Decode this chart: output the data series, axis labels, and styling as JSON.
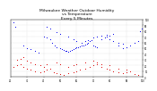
{
  "title": "Milwaukee Weather Outdoor Humidity\nvs Temperature\nEvery 5 Minutes",
  "title_fontsize": 3.2,
  "background_color": "#ffffff",
  "grid_color": "#bbbbbb",
  "blue_color": "#0000ee",
  "red_color": "#dd0000",
  "point_size": 0.5,
  "xlim": [
    20,
    100
  ],
  "ylim": [
    0,
    100
  ],
  "x_tick_interval": 10,
  "y_tick_interval": 10,
  "blue_points": [
    [
      22,
      95
    ],
    [
      23,
      88
    ],
    [
      28,
      55
    ],
    [
      30,
      50
    ],
    [
      32,
      48
    ],
    [
      35,
      45
    ],
    [
      37,
      42
    ],
    [
      40,
      70
    ],
    [
      42,
      68
    ],
    [
      44,
      66
    ],
    [
      45,
      60
    ],
    [
      47,
      55
    ],
    [
      48,
      52
    ],
    [
      50,
      50
    ],
    [
      51,
      48
    ],
    [
      52,
      47
    ],
    [
      53,
      46
    ],
    [
      54,
      45
    ],
    [
      55,
      44
    ],
    [
      56,
      46
    ],
    [
      57,
      47
    ],
    [
      58,
      48
    ],
    [
      59,
      50
    ],
    [
      60,
      51
    ],
    [
      61,
      52
    ],
    [
      62,
      53
    ],
    [
      63,
      54
    ],
    [
      64,
      55
    ],
    [
      65,
      56
    ],
    [
      66,
      58
    ],
    [
      67,
      60
    ],
    [
      68,
      62
    ],
    [
      69,
      64
    ],
    [
      70,
      55
    ],
    [
      71,
      53
    ],
    [
      72,
      52
    ],
    [
      75,
      65
    ],
    [
      77,
      68
    ],
    [
      78,
      70
    ],
    [
      80,
      72
    ],
    [
      82,
      75
    ],
    [
      85,
      55
    ],
    [
      88,
      50
    ],
    [
      90,
      52
    ],
    [
      92,
      54
    ],
    [
      95,
      60
    ],
    [
      97,
      62
    ],
    [
      98,
      80
    ],
    [
      99,
      85
    ],
    [
      42,
      88
    ],
    [
      44,
      85
    ],
    [
      48,
      78
    ],
    [
      50,
      75
    ],
    [
      55,
      70
    ],
    [
      58,
      65
    ],
    [
      60,
      62
    ],
    [
      63,
      60
    ],
    [
      65,
      62
    ],
    [
      67,
      64
    ],
    [
      70,
      68
    ],
    [
      72,
      70
    ],
    [
      75,
      72
    ],
    [
      78,
      74
    ],
    [
      80,
      65
    ],
    [
      82,
      62
    ],
    [
      85,
      60
    ],
    [
      88,
      58
    ]
  ],
  "red_points": [
    [
      22,
      18
    ],
    [
      24,
      20
    ],
    [
      26,
      22
    ],
    [
      28,
      18
    ],
    [
      30,
      15
    ],
    [
      32,
      12
    ],
    [
      35,
      10
    ],
    [
      38,
      8
    ],
    [
      40,
      10
    ],
    [
      42,
      12
    ],
    [
      44,
      14
    ],
    [
      46,
      8
    ],
    [
      48,
      6
    ],
    [
      50,
      5
    ],
    [
      52,
      4
    ],
    [
      55,
      6
    ],
    [
      58,
      8
    ],
    [
      60,
      10
    ],
    [
      62,
      12
    ],
    [
      65,
      15
    ],
    [
      68,
      18
    ],
    [
      70,
      20
    ],
    [
      72,
      22
    ],
    [
      75,
      18
    ],
    [
      78,
      15
    ],
    [
      80,
      12
    ],
    [
      82,
      10
    ],
    [
      85,
      8
    ],
    [
      88,
      6
    ],
    [
      90,
      8
    ],
    [
      92,
      10
    ],
    [
      95,
      5
    ],
    [
      97,
      4
    ],
    [
      24,
      30
    ],
    [
      26,
      32
    ],
    [
      28,
      35
    ],
    [
      30,
      28
    ],
    [
      32,
      25
    ],
    [
      35,
      22
    ],
    [
      38,
      20
    ],
    [
      40,
      18
    ],
    [
      42,
      22
    ],
    [
      48,
      25
    ],
    [
      50,
      22
    ],
    [
      55,
      18
    ],
    [
      58,
      20
    ],
    [
      60,
      22
    ],
    [
      65,
      25
    ],
    [
      70,
      28
    ],
    [
      72,
      25
    ],
    [
      75,
      22
    ],
    [
      80,
      20
    ],
    [
      85,
      15
    ],
    [
      90,
      12
    ]
  ]
}
